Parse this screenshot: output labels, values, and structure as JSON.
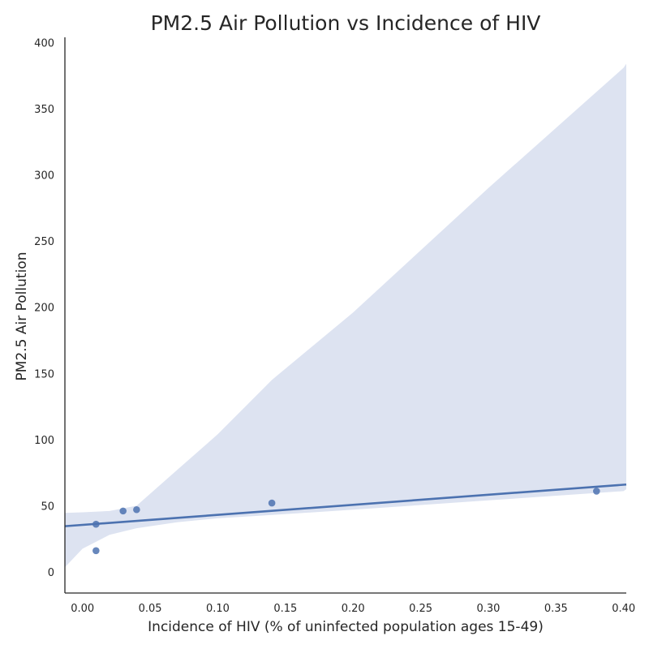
{
  "chart_data": {
    "type": "scatter",
    "title": "PM2.5 Air Pollution vs Incidence of HIV",
    "xlabel": "Incidence of HIV (% of uninfected population ages 15-49)",
    "ylabel": "PM2.5 Air Pollution",
    "xlim": [
      -0.013,
      0.402
    ],
    "ylim": [
      -16,
      404
    ],
    "x_ticks": [
      "0.00",
      "0.05",
      "0.10",
      "0.15",
      "0.20",
      "0.25",
      "0.30",
      "0.35",
      "0.40"
    ],
    "y_ticks": [
      "0",
      "50",
      "100",
      "150",
      "200",
      "250",
      "300",
      "350",
      "400"
    ],
    "grid": false,
    "colors": {
      "points": "#4c72b0",
      "line": "#4c72b0",
      "band": "#dde3f1",
      "axis": "#262626"
    },
    "points": [
      {
        "x": 0.01,
        "y": 16
      },
      {
        "x": 0.01,
        "y": 36
      },
      {
        "x": 0.03,
        "y": 46
      },
      {
        "x": 0.04,
        "y": 47
      },
      {
        "x": 0.14,
        "y": 52
      },
      {
        "x": 0.38,
        "y": 61
      }
    ],
    "regression": {
      "x": [
        -0.013,
        0.402
      ],
      "y": [
        34.5,
        66.0
      ]
    },
    "confidence_band": {
      "x": [
        -0.013,
        0.0,
        0.02,
        0.04,
        0.07,
        0.1,
        0.14,
        0.2,
        0.3,
        0.4,
        0.402
      ],
      "upper": [
        44.5,
        45.0,
        46.0,
        50.0,
        77.0,
        104.0,
        145.0,
        196.0,
        290.0,
        381.0,
        384.0
      ],
      "lower": [
        3.5,
        17.5,
        28.0,
        33.0,
        37.5,
        40.5,
        43.0,
        47.0,
        54.0,
        61.0,
        62.5
      ]
    }
  }
}
